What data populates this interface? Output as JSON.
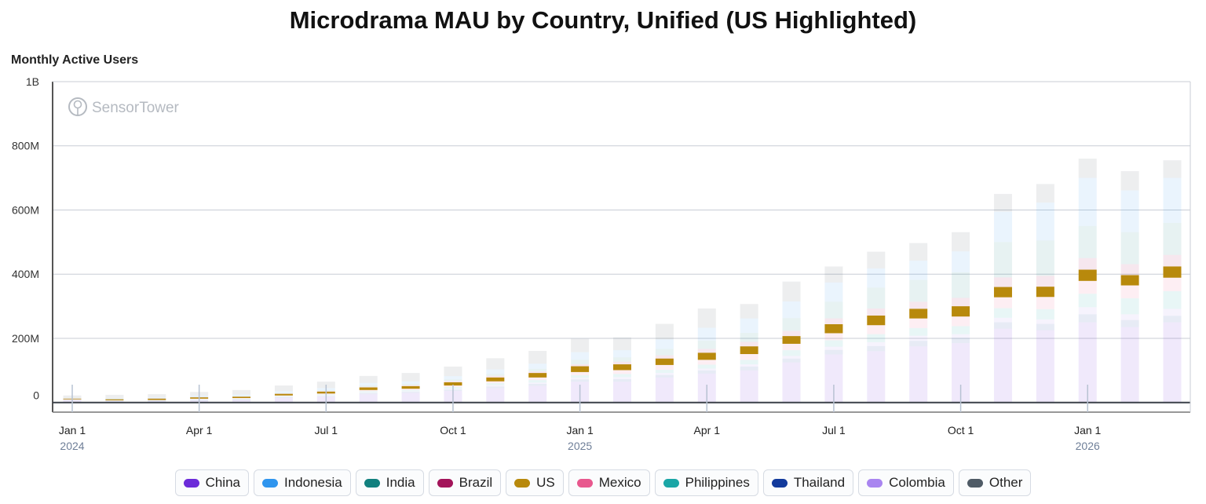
{
  "page": {
    "title": "Microdrama MAU by Country, Unified (US Highlighted)",
    "y_axis_title": "Monthly Active Users",
    "watermark": "SensorTower"
  },
  "legend": [
    {
      "name": "China",
      "color": "#6c2bd9"
    },
    {
      "name": "Indonesia",
      "color": "#2f95ee"
    },
    {
      "name": "India",
      "color": "#11807e"
    },
    {
      "name": "Brazil",
      "color": "#a3145a"
    },
    {
      "name": "US",
      "color": "#b8890c"
    },
    {
      "name": "Mexico",
      "color": "#e8588e"
    },
    {
      "name": "Philippines",
      "color": "#1aa6a6"
    },
    {
      "name": "Thailand",
      "color": "#123a9c"
    },
    {
      "name": "Colombia",
      "color": "#a985f0"
    },
    {
      "name": "Other",
      "color": "#4f5b66"
    }
  ],
  "chart_data": {
    "type": "bar",
    "stacked": true,
    "highlighted_series": "US",
    "title": "Microdrama MAU by Country, Unified (US Highlighted)",
    "ylabel": "Monthly Active Users",
    "ylim": [
      -30000000,
      1000000000
    ],
    "y_ticks": [
      {
        "value": 0,
        "label": "0"
      },
      {
        "value": 200000000,
        "label": "200M"
      },
      {
        "value": 400000000,
        "label": "400M"
      },
      {
        "value": 600000000,
        "label": "600M"
      },
      {
        "value": 800000000,
        "label": "800M"
      },
      {
        "value": 1000000000,
        "label": "1B"
      }
    ],
    "x_ticks": [
      {
        "index": 0,
        "label": "Jan 1",
        "year": "2024"
      },
      {
        "index": 3,
        "label": "Apr 1",
        "year": ""
      },
      {
        "index": 6,
        "label": "Jul 1",
        "year": ""
      },
      {
        "index": 9,
        "label": "Oct 1",
        "year": ""
      },
      {
        "index": 12,
        "label": "Jan 1",
        "year": "2025"
      },
      {
        "index": 15,
        "label": "Apr 1",
        "year": ""
      },
      {
        "index": 18,
        "label": "Jul 1",
        "year": ""
      },
      {
        "index": 21,
        "label": "Oct 1",
        "year": ""
      },
      {
        "index": 24,
        "label": "Jan 1",
        "year": "2026"
      }
    ],
    "categories": [
      "2024-01",
      "2024-02",
      "2024-03",
      "2024-04",
      "2024-05",
      "2024-06",
      "2024-07",
      "2024-08",
      "2024-09",
      "2024-10",
      "2024-11",
      "2024-12",
      "2025-01",
      "2025-02",
      "2025-03",
      "2025-04",
      "2025-05",
      "2025-06",
      "2025-07",
      "2025-08",
      "2025-09",
      "2025-10",
      "2025-11",
      "2025-12",
      "2026-01",
      "2026-02",
      "2026-03"
    ],
    "grid": true,
    "legend_position": "bottom",
    "series": [
      {
        "name": "China",
        "values": [
          10,
          3,
          4,
          6,
          8,
          14,
          18,
          26,
          30,
          36,
          45,
          52,
          65,
          65,
          78,
          90,
          100,
          125,
          150,
          160,
          175,
          185,
          230,
          225,
          250,
          235,
          250
        ]
      },
      {
        "name": "Thailand",
        "values": [
          0,
          1,
          1,
          1,
          1,
          2,
          2,
          3,
          3,
          4,
          5,
          6,
          7,
          8,
          8,
          10,
          12,
          12,
          14,
          16,
          17,
          16,
          20,
          20,
          25,
          22,
          20
        ]
      },
      {
        "name": "Colombia",
        "values": [
          0,
          1,
          1,
          1,
          1,
          1,
          2,
          2,
          2,
          3,
          4,
          4,
          5,
          6,
          6,
          6,
          7,
          8,
          10,
          12,
          16,
          12,
          14,
          14,
          22,
          18,
          22
        ]
      },
      {
        "name": "Philippines",
        "values": [
          0,
          1,
          1,
          2,
          2,
          3,
          3,
          4,
          4,
          5,
          6,
          8,
          8,
          10,
          10,
          12,
          14,
          18,
          20,
          25,
          24,
          25,
          30,
          32,
          42,
          50,
          55
        ]
      },
      {
        "name": "Mexico",
        "values": [
          0,
          1,
          1,
          2,
          2,
          2,
          3,
          4,
          4,
          5,
          6,
          8,
          10,
          12,
          15,
          15,
          18,
          20,
          22,
          28,
          30,
          30,
          34,
          38,
          40,
          40,
          42
        ]
      },
      {
        "name": "US",
        "values": [
          2,
          3,
          4,
          4,
          4,
          5,
          6,
          8,
          8,
          10,
          12,
          14,
          18,
          18,
          20,
          22,
          24,
          24,
          28,
          30,
          30,
          32,
          32,
          32,
          35,
          32,
          35
        ]
      },
      {
        "name": "Brazil",
        "values": [
          0,
          0,
          1,
          1,
          1,
          1,
          2,
          2,
          3,
          4,
          5,
          5,
          6,
          8,
          10,
          12,
          14,
          16,
          18,
          22,
          22,
          26,
          30,
          34,
          36,
          34,
          36
        ]
      },
      {
        "name": "India",
        "values": [
          0,
          1,
          1,
          1,
          2,
          2,
          3,
          4,
          4,
          5,
          6,
          8,
          14,
          14,
          20,
          26,
          28,
          40,
          52,
          65,
          68,
          80,
          110,
          110,
          100,
          100,
          100
        ]
      },
      {
        "name": "Indonesia",
        "values": [
          0,
          1,
          2,
          3,
          4,
          5,
          6,
          8,
          8,
          10,
          14,
          16,
          24,
          22,
          30,
          40,
          45,
          52,
          60,
          60,
          60,
          65,
          95,
          118,
          150,
          130,
          140
        ]
      },
      {
        "name": "Other",
        "values": [
          10,
          12,
          10,
          12,
          14,
          18,
          20,
          22,
          26,
          30,
          35,
          40,
          42,
          40,
          48,
          60,
          45,
          62,
          50,
          52,
          55,
          60,
          55,
          58,
          60,
          60,
          55
        ]
      }
    ]
  }
}
